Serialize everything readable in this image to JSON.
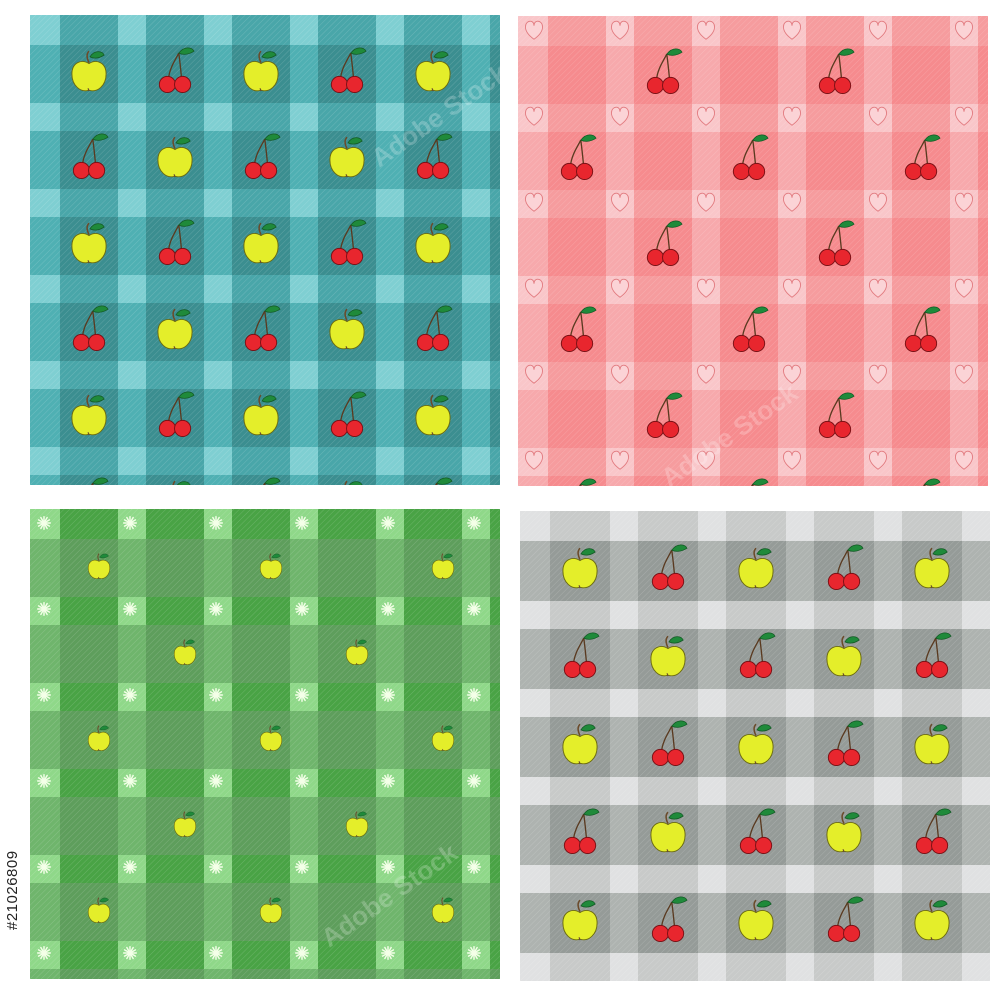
{
  "stock_id": "#21026809",
  "watermark": "Adobe Stock",
  "icons": {
    "apple": "apple-icon",
    "cherry": "cherry-icon",
    "heart": "heart-icon",
    "star": "star-icon"
  },
  "panels": [
    {
      "name": "teal-gingham",
      "colors": {
        "base": "#7fcfd2",
        "band_h": "#4fb0b3",
        "band_v": "#3f9fa2",
        "cross": "#3b8e90",
        "accent": "#36c1c7"
      },
      "cross_motifs": "apple-cherry-alternating",
      "gap_motif": "none"
    },
    {
      "name": "pink-gingham",
      "colors": {
        "base": "#f9c6c9",
        "band_h": "#f7a9ac",
        "band_v": "#f69497",
        "cross": "#f68b8e",
        "accent": "#f48789"
      },
      "cross_motifs": "cherry-sparse",
      "gap_motif": "heart-icon"
    },
    {
      "name": "green-gingham",
      "colors": {
        "base": "#8fd889",
        "band_h": "#6fb56c",
        "band_v": "#3d9a3a",
        "cross": "#5e9e5c",
        "accent": "#2fa02f"
      },
      "cross_motifs": "apple-small",
      "gap_motif": "star-icon"
    },
    {
      "name": "gray-gingham",
      "colors": {
        "base": "#e0e1e2",
        "band_h": "#aeb3b0",
        "band_v": "#c3c6c4",
        "cross": "#959b98",
        "accent": "#d7d9d9"
      },
      "cross_motifs": "apple-cherry-alternating",
      "gap_motif": "none"
    }
  ]
}
